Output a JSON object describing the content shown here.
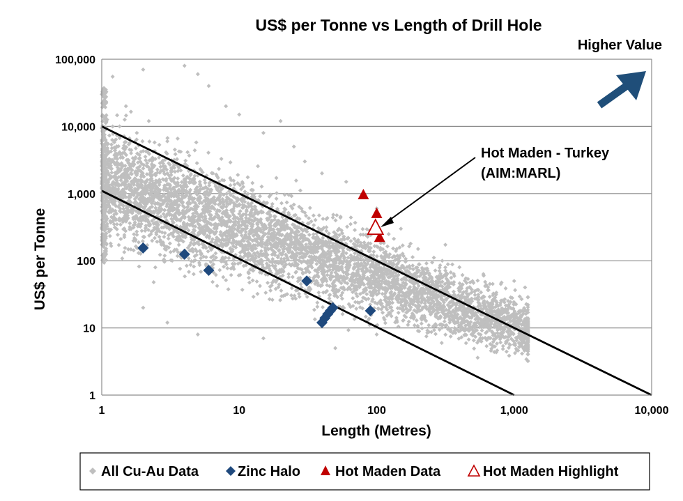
{
  "chart_data": {
    "type": "scatter",
    "title": "US$ per Tonne vs Length of Drill Hole",
    "xlabel": "Length (Metres)",
    "ylabel": "US$ per Tonne",
    "xscale": "log",
    "yscale": "log",
    "xlim": [
      1,
      10000
    ],
    "ylim": [
      1,
      100000
    ],
    "x_ticks": [
      1,
      10,
      100,
      1000,
      10000
    ],
    "x_tick_labels": [
      "1",
      "10",
      "100",
      "1,000",
      "10,000"
    ],
    "y_ticks": [
      1,
      10,
      100,
      1000,
      10000,
      100000
    ],
    "y_tick_labels": [
      "1",
      "10",
      "100",
      "1,000",
      "10,000",
      "100,000"
    ],
    "grid": "horizontal",
    "legend_position": "bottom",
    "series": [
      {
        "name": "All Cu-Au Data",
        "marker": "small-diamond",
        "color": "#bfbfbf",
        "description_points": "dense cloud, ~thousands of points, centred on a downward trend",
        "samples": [
          [
            1,
            30000
          ],
          [
            1.2,
            55000
          ],
          [
            1.5,
            20000
          ],
          [
            1.8,
            8000
          ],
          [
            2,
            70000
          ],
          [
            2.2,
            12000
          ],
          [
            3,
            6000
          ],
          [
            4,
            80000
          ],
          [
            5,
            60000
          ],
          [
            6,
            40000
          ],
          [
            8,
            20000
          ],
          [
            10,
            15000
          ],
          [
            15,
            8000
          ],
          [
            20,
            12000
          ],
          [
            25,
            5000
          ],
          [
            30,
            3000
          ],
          [
            40,
            2000
          ],
          [
            60,
            1500
          ],
          [
            80,
            900
          ],
          [
            100,
            600
          ],
          [
            150,
            300
          ],
          [
            200,
            150
          ],
          [
            300,
            100
          ],
          [
            400,
            80
          ],
          [
            600,
            60
          ],
          [
            800,
            45
          ],
          [
            1000,
            50
          ],
          [
            1200,
            40
          ],
          [
            3,
            2000
          ],
          [
            5,
            800
          ],
          [
            10,
            500
          ],
          [
            20,
            300
          ],
          [
            40,
            150
          ],
          [
            60,
            80
          ],
          [
            100,
            50
          ],
          [
            200,
            30
          ],
          [
            2,
            20
          ],
          [
            3,
            12
          ],
          [
            5,
            8
          ],
          [
            15,
            7
          ],
          [
            50,
            5
          ],
          [
            100,
            8
          ],
          [
            300,
            20
          ]
        ]
      },
      {
        "name": "Zinc Halo",
        "marker": "diamond",
        "color": "#1f497d",
        "points": [
          [
            2,
            155
          ],
          [
            4,
            125
          ],
          [
            6,
            72
          ],
          [
            31,
            50
          ],
          [
            40,
            12
          ],
          [
            42,
            14
          ],
          [
            44,
            16
          ],
          [
            46,
            18
          ],
          [
            48,
            20
          ],
          [
            90,
            18
          ]
        ]
      },
      {
        "name": "Hot Maden Data",
        "marker": "triangle",
        "color": "#c00000",
        "points": [
          [
            80,
            950
          ],
          [
            100,
            500
          ],
          [
            105,
            220
          ]
        ]
      },
      {
        "name": "Hot Maden Highlight",
        "marker": "open-triangle",
        "color": "#c00000",
        "points": [
          [
            98,
            300
          ]
        ]
      }
    ],
    "lines": [
      {
        "from": [
          1,
          10000
        ],
        "to": [
          10000,
          1
        ]
      },
      {
        "from": [
          1,
          1100
        ],
        "to": [
          1000,
          1
        ]
      }
    ],
    "annotations": [
      {
        "text_lines": [
          "Hot Maden - Turkey",
          "(AIM:MARL)"
        ],
        "points_to": [
          98,
          300
        ]
      },
      {
        "text": "Higher Value",
        "arrow": "up-right"
      }
    ],
    "colors": {
      "grid": "#8c8c8c",
      "arrow": "#1f4e79",
      "trend_line": "#000000"
    }
  }
}
